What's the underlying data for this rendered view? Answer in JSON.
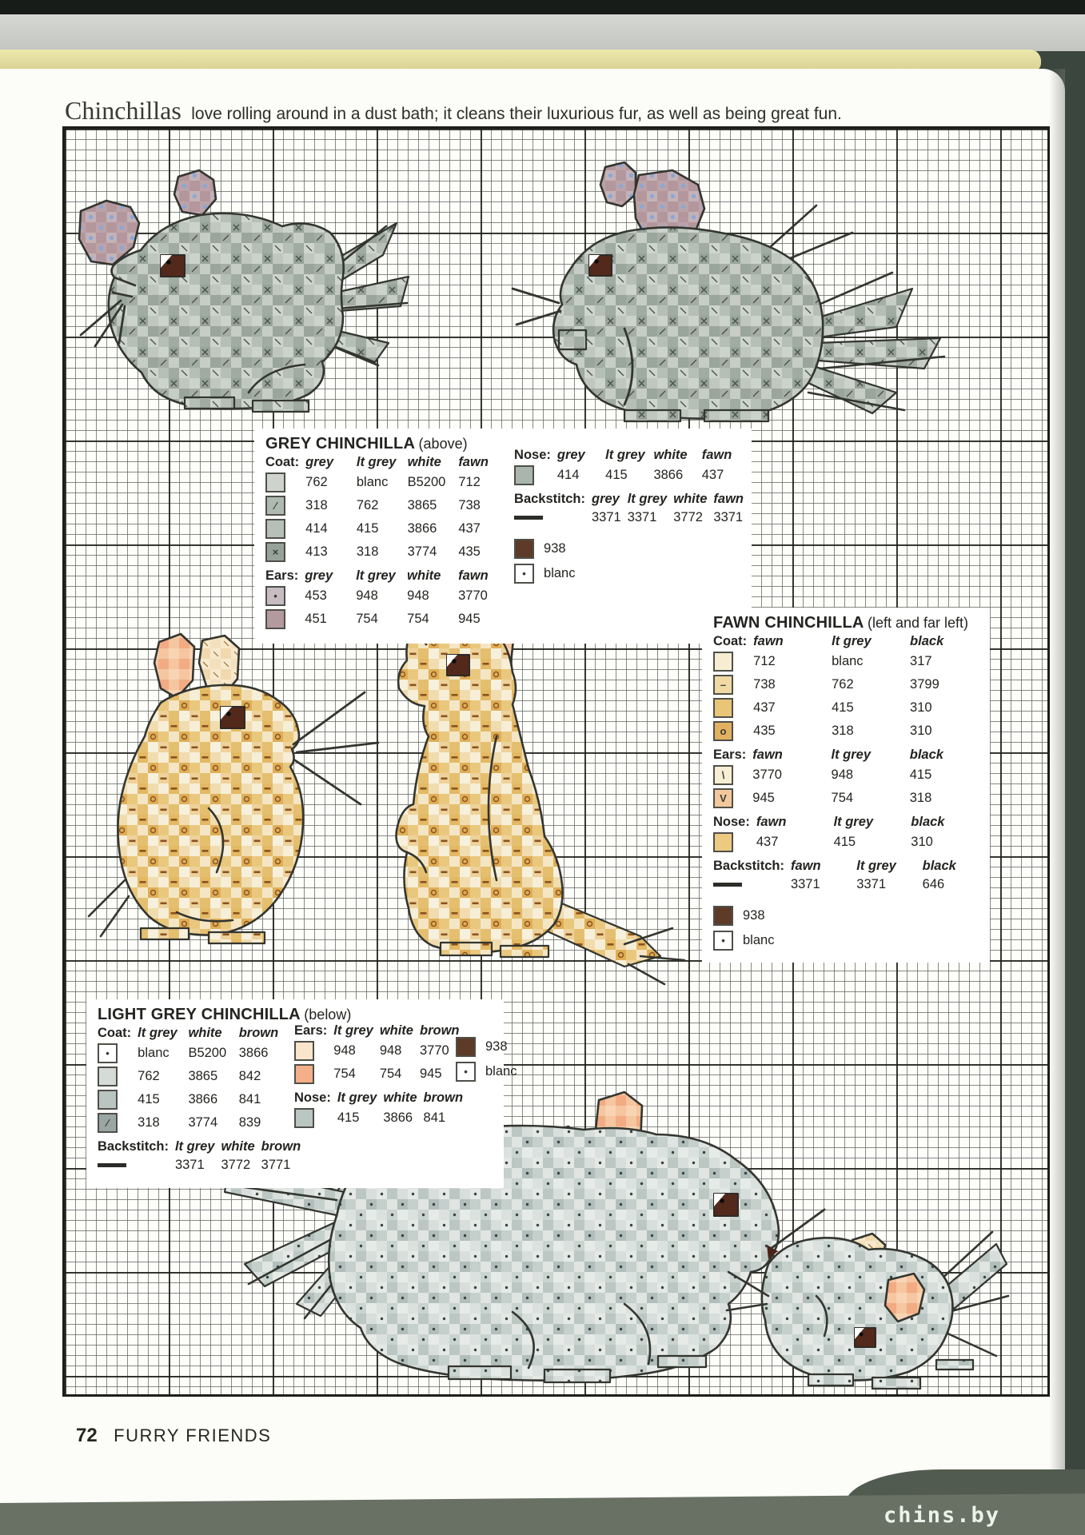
{
  "page": {
    "headline_lead": "Chinchillas",
    "headline_rest": "love rolling around in a dust bath; it cleans their luxurious fur, as well as being great fun.",
    "footer_page_number": "72",
    "footer_section": "FURRY FRIENDS",
    "watermark": "chins.by"
  },
  "colors": {
    "paper": "#fcfcf9",
    "grid_minor_line": "#60645f",
    "grid_major_line": "#1c1d18",
    "scanner_bed": "#3b463e",
    "bottom_band": "#687164",
    "page_edge_yellow": "#e9e4a6",
    "swatch_938_brown": "#5e3a28"
  },
  "motifs": [
    "grey-chinchilla-crouching",
    "grey-chinchilla-sitting",
    "fawn-chinchilla-crouching",
    "fawn-chinchilla-standing",
    "light-grey-chinchilla-mother",
    "light-grey-chinchilla-baby"
  ],
  "legends": [
    {
      "id": "grey",
      "title": "GREY CHINCHILLA",
      "subtitle": "(above)",
      "extras_column": 2,
      "sections": [
        {
          "column": 1,
          "label": "Coat:",
          "cols": [
            "grey",
            "lt grey",
            "white",
            "fawn"
          ],
          "rows": [
            {
              "swatch": {
                "fill": "#ced4cd"
              },
              "values": [
                "762",
                "blanc",
                "B5200",
                "712"
              ]
            },
            {
              "swatch": {
                "fill": "#aeb9af",
                "symbol": "slash"
              },
              "values": [
                "318",
                "762",
                "3865",
                "738"
              ]
            },
            {
              "swatch": {
                "fill": "#b7c0b8"
              },
              "values": [
                "414",
                "415",
                "3866",
                "437"
              ]
            },
            {
              "swatch": {
                "fill": "#97a29a",
                "symbol": "x"
              },
              "values": [
                "413",
                "318",
                "3774",
                "435"
              ]
            }
          ]
        },
        {
          "column": 1,
          "label": "Ears:",
          "cols": [
            "grey",
            "lt grey",
            "white",
            "fawn"
          ],
          "rows": [
            {
              "swatch": {
                "fill": "#c7bcc2",
                "symbol": "dot-blue"
              },
              "values": [
                "453",
                "948",
                "948",
                "3770"
              ]
            },
            {
              "swatch": {
                "fill": "#b39a9f"
              },
              "values": [
                "451",
                "754",
                "754",
                "945"
              ]
            }
          ]
        },
        {
          "column": 2,
          "label": "Nose:",
          "cols": [
            "grey",
            "lt grey",
            "white",
            "fawn"
          ],
          "rows": [
            {
              "swatch": {
                "fill": "#aab5ae"
              },
              "values": [
                "414",
                "415",
                "3866",
                "437"
              ]
            }
          ]
        },
        {
          "column": 2,
          "label": "Backstitch:",
          "cols": [
            "grey",
            "lt grey",
            "white",
            "fawn"
          ],
          "rows": [
            {
              "swatch": {
                "fill": "line"
              },
              "values": [
                "3371",
                "3371",
                "3772",
                "3371"
              ]
            }
          ]
        }
      ],
      "extras": [
        {
          "fill": "#5e3a28",
          "label": "938"
        },
        {
          "fill": "#ffffff",
          "symbol": "dot",
          "label": "blanc"
        }
      ]
    },
    {
      "id": "fawn",
      "title": "FAWN CHINCHILLA",
      "subtitle": "(left and far left)",
      "extras_column": 1,
      "sections": [
        {
          "column": 1,
          "label": "Coat:",
          "cols": [
            "fawn",
            "lt grey",
            "black"
          ],
          "rows": [
            {
              "swatch": {
                "fill": "#f6edd3"
              },
              "values": [
                "712",
                "blanc",
                "317"
              ]
            },
            {
              "swatch": {
                "fill": "#f0d9a5",
                "symbol": "dash"
              },
              "values": [
                "738",
                "762",
                "3799"
              ]
            },
            {
              "swatch": {
                "fill": "#e9c577"
              },
              "values": [
                "437",
                "415",
                "310"
              ]
            },
            {
              "swatch": {
                "fill": "#e1b160",
                "symbol": "o"
              },
              "values": [
                "435",
                "318",
                "310"
              ]
            }
          ]
        },
        {
          "column": 1,
          "label": "Ears:",
          "cols": [
            "fawn",
            "lt grey",
            "black"
          ],
          "rows": [
            {
              "swatch": {
                "fill": "#f8eed4",
                "symbol": "backslash"
              },
              "values": [
                "3770",
                "948",
                "415"
              ]
            },
            {
              "swatch": {
                "fill": "#f3c89d",
                "symbol": "v"
              },
              "values": [
                "945",
                "754",
                "318"
              ]
            }
          ]
        },
        {
          "column": 1,
          "label": "Nose:",
          "cols": [
            "fawn",
            "lt grey",
            "black"
          ],
          "rows": [
            {
              "swatch": {
                "fill": "#ecca82"
              },
              "values": [
                "437",
                "415",
                "310"
              ]
            }
          ]
        },
        {
          "column": 1,
          "label": "Backstitch:",
          "cols": [
            "fawn",
            "lt grey",
            "black"
          ],
          "rows": [
            {
              "swatch": {
                "fill": "line"
              },
              "values": [
                "3371",
                "3371",
                "646"
              ]
            }
          ]
        }
      ],
      "extras": [
        {
          "fill": "#5e3a28",
          "label": "938"
        },
        {
          "fill": "#ffffff",
          "symbol": "dot",
          "label": "blanc"
        }
      ]
    },
    {
      "id": "lightgrey",
      "title": "LIGHT GREY CHINCHILLA",
      "subtitle": "(below)",
      "extras_column": 3,
      "sections": [
        {
          "column": 1,
          "label": "Coat:",
          "cols": [
            "lt grey",
            "white",
            "brown"
          ],
          "rows": [
            {
              "swatch": {
                "fill": "#ffffff",
                "symbol": "dot"
              },
              "values": [
                "blanc",
                "B5200",
                "3866"
              ]
            },
            {
              "swatch": {
                "fill": "#d5dcd8"
              },
              "values": [
                "762",
                "3865",
                "842"
              ]
            },
            {
              "swatch": {
                "fill": "#bac5c2"
              },
              "values": [
                "415",
                "3866",
                "841"
              ]
            },
            {
              "swatch": {
                "fill": "#9aa6a3",
                "symbol": "slash"
              },
              "values": [
                "318",
                "3774",
                "839"
              ]
            }
          ]
        },
        {
          "column": 2,
          "label": "Ears:",
          "cols": [
            "lt grey",
            "white",
            "brown"
          ],
          "rows": [
            {
              "swatch": {
                "fill": "#f9e5cb"
              },
              "values": [
                "948",
                "948",
                "3770"
              ]
            },
            {
              "swatch": {
                "fill": "#f5af88"
              },
              "values": [
                "754",
                "754",
                "945"
              ]
            }
          ]
        },
        {
          "column": 2,
          "label": "Nose:",
          "cols": [
            "lt grey",
            "white",
            "brown"
          ],
          "rows": [
            {
              "swatch": {
                "fill": "#b9c6c2"
              },
              "values": [
                "415",
                "3866",
                "841"
              ]
            }
          ]
        },
        {
          "column": 1,
          "label": "Backstitch:",
          "cols": [
            "lt grey",
            "white",
            "brown"
          ],
          "rows": [
            {
              "swatch": {
                "fill": "line"
              },
              "values": [
                "3371",
                "3772",
                "3771"
              ]
            }
          ]
        }
      ],
      "extras": [
        {
          "fill": "#5e3a28",
          "label": "938"
        },
        {
          "fill": "#ffffff",
          "symbol": "dot",
          "label": "blanc"
        }
      ]
    }
  ]
}
